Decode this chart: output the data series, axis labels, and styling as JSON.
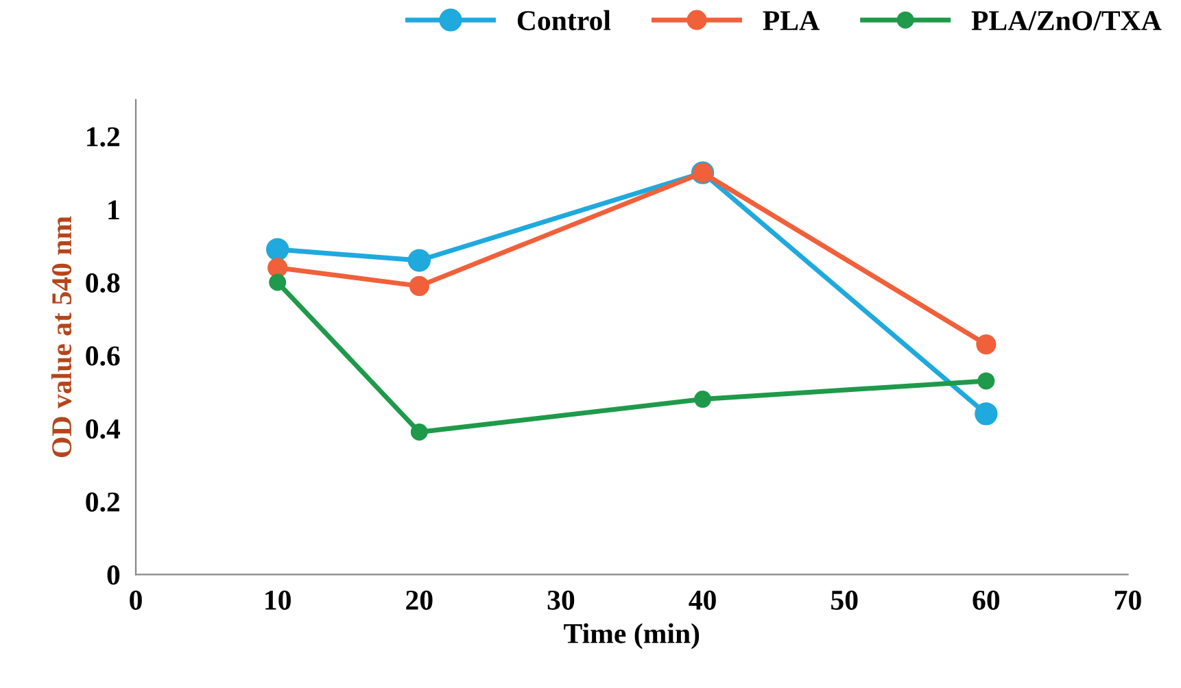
{
  "chart_data": {
    "type": "line",
    "xlabel": "Time (min)",
    "ylabel": "OD value at 540 nm",
    "x": [
      10,
      20,
      40,
      60
    ],
    "series": [
      {
        "name": "Control",
        "color": "#1fa9dd",
        "values": [
          0.89,
          0.86,
          1.1,
          0.44
        ]
      },
      {
        "name": "PLA",
        "color": "#f0603a",
        "values": [
          0.84,
          0.79,
          1.1,
          0.63
        ]
      },
      {
        "name": "PLA/ZnO/TXA",
        "color": "#1e9a4a",
        "values": [
          0.8,
          0.39,
          0.48,
          0.53
        ]
      }
    ],
    "xlim": [
      0,
      70
    ],
    "xticks": [
      0,
      10,
      20,
      30,
      40,
      50,
      60,
      70
    ],
    "ylim": [
      0,
      1.3
    ],
    "yticks": [
      0,
      0.2,
      0.4,
      0.6,
      0.8,
      {
        "value": 1,
        "label": "1"
      },
      1.2
    ],
    "marker": "circle",
    "line_style": "solid",
    "grid": false,
    "legend": "top right"
  }
}
